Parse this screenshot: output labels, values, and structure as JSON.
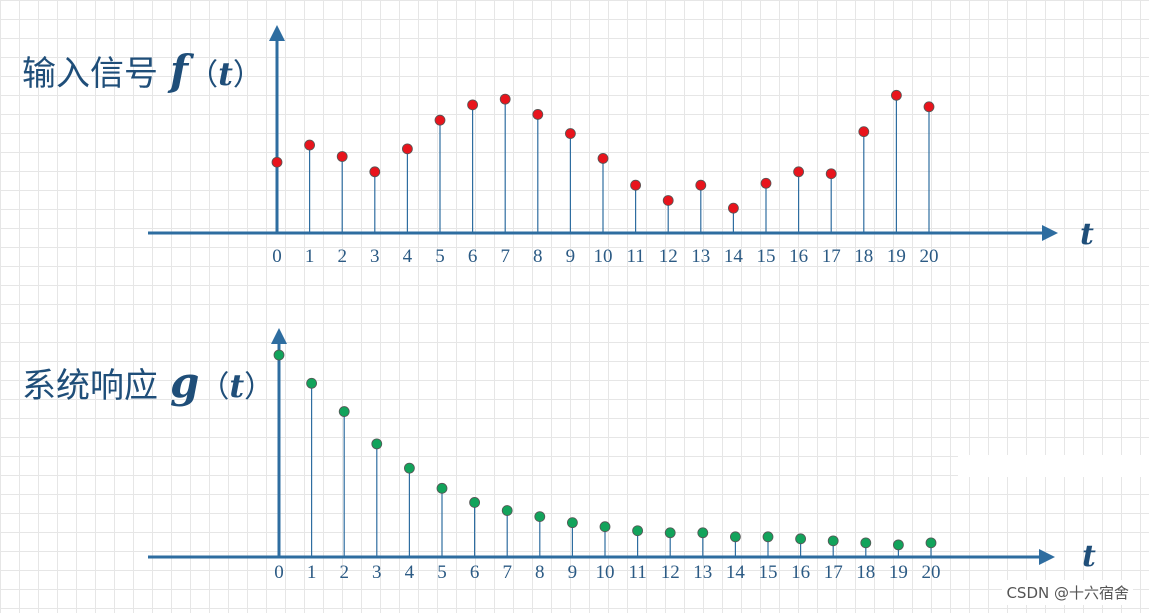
{
  "chart_data": [
    {
      "type": "stem",
      "title_cn": "输入信号",
      "title_func": "f",
      "title_open": "（",
      "title_var": "t",
      "title_close": "）",
      "xlabel": "t",
      "x": [
        0,
        1,
        2,
        3,
        4,
        5,
        6,
        7,
        8,
        9,
        10,
        11,
        12,
        13,
        14,
        15,
        16,
        17,
        18,
        19,
        20
      ],
      "values": [
        3.7,
        4.6,
        4.0,
        3.2,
        4.4,
        5.9,
        6.7,
        7.0,
        6.2,
        5.2,
        3.9,
        2.5,
        1.7,
        2.5,
        1.3,
        2.6,
        3.2,
        3.1,
        5.3,
        7.2,
        6.6
      ],
      "ylim": [
        0,
        8
      ],
      "marker_color": "#e8141c",
      "stem_color": "#2e6da0"
    },
    {
      "type": "stem",
      "title_cn": "系统响应",
      "title_func": "g",
      "title_open": "（",
      "title_var": "t",
      "title_close": "）",
      "xlabel": "t",
      "x": [
        0,
        1,
        2,
        3,
        4,
        5,
        6,
        7,
        8,
        9,
        10,
        11,
        12,
        13,
        14,
        15,
        16,
        17,
        18,
        19,
        20
      ],
      "values": [
        10.0,
        8.6,
        7.2,
        5.6,
        4.4,
        3.4,
        2.7,
        2.3,
        2.0,
        1.7,
        1.5,
        1.3,
        1.2,
        1.2,
        1.0,
        1.0,
        0.9,
        0.8,
        0.7,
        0.6,
        0.7
      ],
      "ylim": [
        0,
        10
      ],
      "marker_color": "#12a35b",
      "stem_color": "#2e6da0"
    }
  ],
  "watermark": "CSDN @十六宿舍"
}
